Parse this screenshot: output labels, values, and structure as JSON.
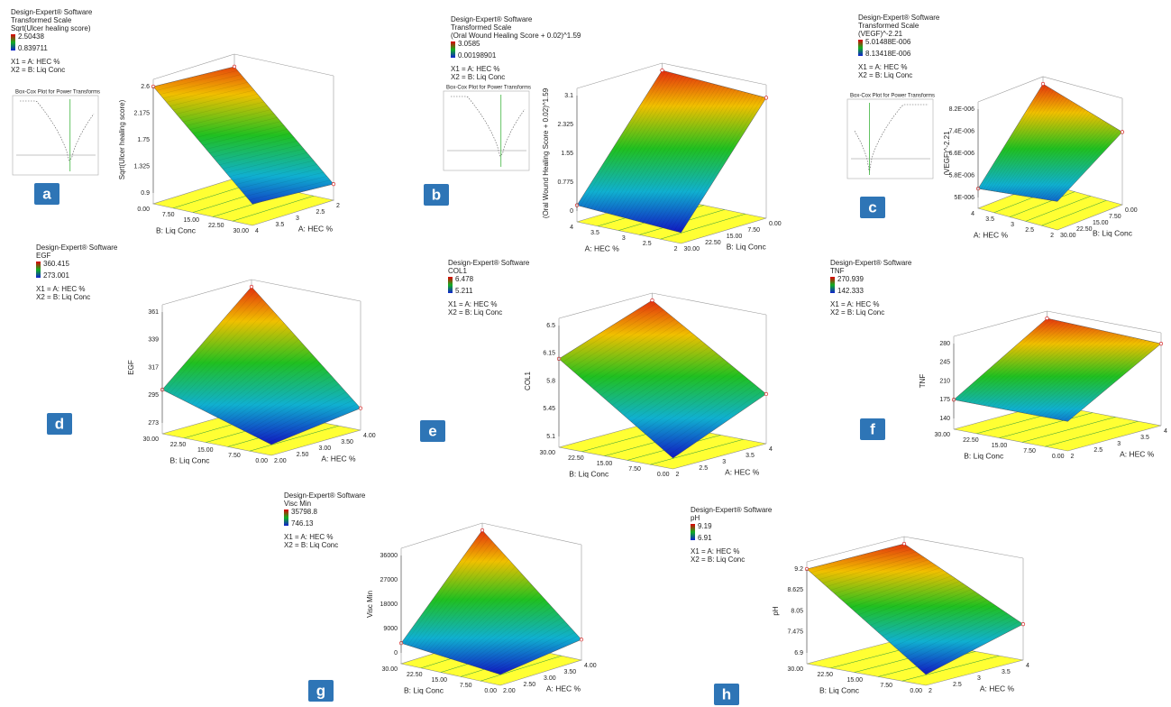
{
  "panels": [
    {
      "letter": "a",
      "software": "Design-Expert® Software",
      "transform": "Transformed Scale",
      "response": "Sqrt(Ulcer healing score)",
      "high": "2.50438",
      "low": "0.839711",
      "x1": "X1 = A: HEC %",
      "x2": "X2 = B: Liq Conc",
      "boxcox": "Box-Cox Plot for Power Transforms",
      "zlabel": "Sqrt(Ulcer healing score)",
      "zticks": [
        "0.9",
        "1.325",
        "1.75",
        "2.175",
        "2.6"
      ],
      "b_label": "B: Liq Conc",
      "b_ticks": [
        "0.00",
        "7.50",
        "15.00",
        "22.50",
        "30.00"
      ],
      "a_label": "A: HEC %",
      "a_ticks": [
        "4",
        "3.5",
        "3",
        "2.5",
        "2"
      ]
    },
    {
      "letter": "b",
      "software": "Design-Expert® Software",
      "transform": "Transformed Scale",
      "response": "(Oral Wound Healing Score + 0.02)^1.59",
      "high": "3.0585",
      "low": "0.00198901",
      "x1": "X1 = A: HEC %",
      "x2": "X2 = B: Liq Conc",
      "boxcox": "Box-Cox Plot for Power Transforms",
      "zlabel": "(Oral Wound Healing Score + 0.02)^1.59",
      "zticks": [
        "0",
        "0.775",
        "1.55",
        "2.325",
        "3.1"
      ],
      "b_label": "A: HEC %",
      "b_ticks": [
        "4",
        "3.5",
        "3",
        "2.5",
        "2"
      ],
      "a_label": "B: Liq Conc",
      "a_ticks": [
        "30.00",
        "22.50",
        "15.00",
        "7.50",
        "0.00"
      ]
    },
    {
      "letter": "c",
      "software": "Design-Expert® Software",
      "transform": "Transformed Scale",
      "response": "(VEGF)^-2.21",
      "high": "5.01488E-006",
      "low": "8.13418E-006",
      "x1": "X1 = A: HEC %",
      "x2": "X2 = B: Liq Conc",
      "boxcox": "Box-Cox Plot for Power Transforms",
      "zlabel": "(VEGF)^-2.21",
      "zticks": [
        "5E-006",
        "5.8E-006",
        "6.6E-006",
        "7.4E-006",
        "8.2E-006"
      ],
      "b_label": "A: HEC %",
      "b_ticks": [
        "4",
        "3.5",
        "3",
        "2.5",
        "2"
      ],
      "a_label": "B: Liq Conc",
      "a_ticks": [
        "30.00",
        "22.50",
        "15.00",
        "7.50",
        "0.00"
      ]
    },
    {
      "letter": "d",
      "software": "Design-Expert® Software",
      "response": "EGF",
      "high": "360.415",
      "low": "273.001",
      "x1": "X1 = A: HEC %",
      "x2": "X2 = B: Liq Conc",
      "zlabel": "EGF",
      "zticks": [
        "273",
        "295",
        "317",
        "339",
        "361"
      ],
      "b_label": "B: Liq Conc",
      "b_ticks": [
        "30.00",
        "22.50",
        "15.00",
        "7.50",
        "0.00"
      ],
      "a_label": "A: HEC %",
      "a_ticks": [
        "2.00",
        "2.50",
        "3.00",
        "3.50",
        "4.00"
      ]
    },
    {
      "letter": "e",
      "software": "Design-Expert® Software",
      "response": "COL1",
      "high": "6.478",
      "low": "5.211",
      "x1": "X1 = A: HEC %",
      "x2": "X2 = B: Liq Conc",
      "zlabel": "COL1",
      "zticks": [
        "5.1",
        "5.45",
        "5.8",
        "6.15",
        "6.5"
      ],
      "b_label": "B: Liq Conc",
      "b_ticks": [
        "30.00",
        "22.50",
        "15.00",
        "7.50",
        "0.00"
      ],
      "a_label": "A: HEC %",
      "a_ticks": [
        "2",
        "2.5",
        "3",
        "3.5",
        "4"
      ]
    },
    {
      "letter": "f",
      "software": "Design-Expert® Software",
      "response": "TNF",
      "high": "270.939",
      "low": "142.333",
      "x1": "X1 = A: HEC %",
      "x2": "X2 = B: Liq Conc",
      "zlabel": "TNF",
      "zticks": [
        "140",
        "175",
        "210",
        "245",
        "280"
      ],
      "b_label": "B: Liq Conc",
      "b_ticks": [
        "30.00",
        "22.50",
        "15.00",
        "7.50",
        "0.00"
      ],
      "a_label": "A: HEC %",
      "a_ticks": [
        "2",
        "2.5",
        "3",
        "3.5",
        "4"
      ]
    },
    {
      "letter": "g",
      "software": "Design-Expert® Software",
      "response": "Visc Min",
      "high": "35798.8",
      "low": "746.13",
      "x1": "X1 = A: HEC %",
      "x2": "X2 = B: Liq Conc",
      "zlabel": "Visc Min",
      "zticks": [
        "0",
        "9000",
        "18000",
        "27000",
        "36000"
      ],
      "b_label": "B: Liq Conc",
      "b_ticks": [
        "30.00",
        "22.50",
        "15.00",
        "7.50",
        "0.00"
      ],
      "a_label": "A: HEC %",
      "a_ticks": [
        "2.00",
        "2.50",
        "3.00",
        "3.50",
        "4.00"
      ]
    },
    {
      "letter": "h",
      "software": "Design-Expert® Software",
      "response": "pH",
      "high": "9.19",
      "low": "6.91",
      "x1": "X1 = A: HEC %",
      "x2": "X2 = B: Liq Conc",
      "zlabel": "pH",
      "zticks": [
        "6.9",
        "7.475",
        "8.05",
        "8.625",
        "9.2"
      ],
      "b_label": "B: Liq Conc",
      "b_ticks": [
        "30.00",
        "22.50",
        "15.00",
        "7.50",
        "0.00"
      ],
      "a_label": "A: HEC %",
      "a_ticks": [
        "2",
        "2.5",
        "3",
        "3.5",
        "4"
      ]
    }
  ]
}
